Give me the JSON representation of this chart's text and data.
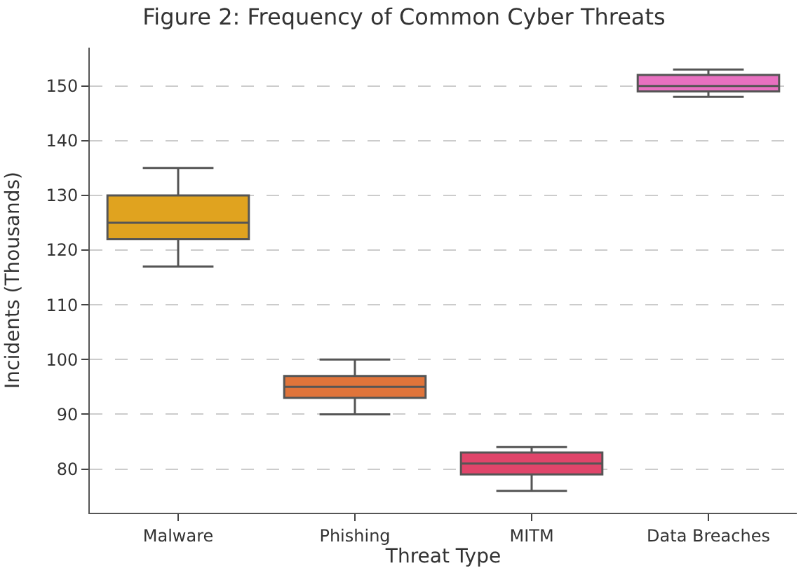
{
  "chart_data": {
    "type": "box",
    "title": "Figure 2: Frequency of Common Cyber Threats",
    "xlabel": "Threat Type",
    "ylabel": "Incidents (Thousands)",
    "categories": [
      "Malware",
      "Phishing",
      "MITM",
      "Data Breaches"
    ],
    "boxes": [
      {
        "low": 117,
        "q1": 122,
        "median": 125,
        "q3": 130,
        "high": 135
      },
      {
        "low": 90,
        "q1": 93,
        "median": 95,
        "q3": 97,
        "high": 100
      },
      {
        "low": 76,
        "q1": 79,
        "median": 81,
        "q3": 83,
        "high": 84
      },
      {
        "low": 148,
        "q1": 149,
        "median": 150,
        "q3": 152,
        "high": 153
      }
    ],
    "colors": [
      "#e0a31f",
      "#e0743a",
      "#e0456a",
      "#e870c0"
    ],
    "ylim": [
      72,
      157
    ],
    "yticks": [
      80,
      90,
      100,
      110,
      120,
      130,
      140,
      150
    ],
    "grid": "y"
  }
}
